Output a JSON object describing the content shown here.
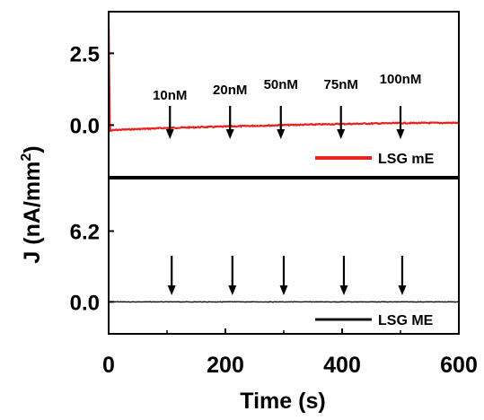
{
  "chart_data": [
    {
      "type": "line",
      "panel": "top",
      "xlim": [
        0,
        600
      ],
      "ylim": [
        -1.8,
        3.95
      ],
      "yticks": [
        {
          "value": 2.5,
          "label": "2.5"
        },
        {
          "value": 0.0,
          "label": "0.0"
        }
      ],
      "series": [
        {
          "name": "LSG mE",
          "color": "#e8231c",
          "x": [
            0,
            2,
            3,
            10,
            100,
            200,
            300,
            400,
            500,
            600
          ],
          "y": [
            3.5,
            0.0,
            -0.2,
            -0.17,
            -0.1,
            -0.05,
            0.0,
            0.04,
            0.07,
            0.08
          ]
        }
      ],
      "annotations": [
        {
          "label": "10nM",
          "x": 105
        },
        {
          "label": "20nM",
          "x": 208
        },
        {
          "label": "50nM",
          "x": 295
        },
        {
          "label": "75nM",
          "x": 398
        },
        {
          "label": "100nM",
          "x": 500
        }
      ],
      "legend": "bottom-right"
    },
    {
      "type": "line",
      "panel": "bottom",
      "xlim": [
        0,
        600
      ],
      "ylim": [
        -2.8,
        10.8
      ],
      "yticks": [
        {
          "value": 6.2,
          "label": "6.2"
        },
        {
          "value": 0.0,
          "label": "0.0"
        }
      ],
      "series": [
        {
          "name": "LSG ME",
          "color": "#111111",
          "x": [
            0,
            100,
            200,
            300,
            400,
            500,
            600
          ],
          "y": [
            0.0,
            0.0,
            0.0,
            0.0,
            0.0,
            0.0,
            0.0
          ]
        }
      ],
      "annotations": [
        {
          "label": "",
          "x": 108
        },
        {
          "label": "",
          "x": 212
        },
        {
          "label": "",
          "x": 300
        },
        {
          "label": "",
          "x": 403
        },
        {
          "label": "",
          "x": 503
        }
      ],
      "legend": "bottom-right"
    }
  ],
  "axes": {
    "xlabel": "Time (s)",
    "ylabel_main": "J (nA/mm",
    "ylabel_sup": "2",
    "ylabel_close": ")",
    "xticks": [
      {
        "value": 0,
        "label": "0"
      },
      {
        "value": 200,
        "label": "200"
      },
      {
        "value": 400,
        "label": "400"
      },
      {
        "value": 600,
        "label": "600"
      }
    ]
  }
}
